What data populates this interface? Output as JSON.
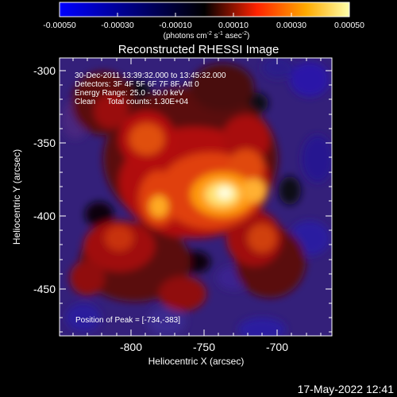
{
  "colorbar": {
    "ticks": [
      "-0.00050",
      "-0.00030",
      "-0.00010",
      "0.00010",
      "0.00030",
      "0.00050"
    ],
    "units_prefix": "(photons cm",
    "units_exp1": "-2",
    "units_mid1": " s",
    "units_exp2": "-1",
    "units_mid2": " asec",
    "units_exp3": "-2",
    "units_suffix": ")",
    "gradient_colors": [
      "#0000ff",
      "#000000",
      "#ff2200",
      "#ffaa00",
      "#ffffaa"
    ]
  },
  "title": "Reconstructed RHESSI Image",
  "info": {
    "line1": "30-Dec-2011 13:39:32.000 to 13:45:32.000",
    "line2": "Detectors: 3F 4F 5F 6F 7F 8F, Att 0",
    "line3": "Energy Range: 25.0 - 50.0 keV",
    "line4_label": "Clean",
    "line4_counts": "Total counts: 1.30E+04"
  },
  "peak_label": "Position of Peak = [-734,-383]",
  "axes": {
    "y_ticks": [
      "-300",
      "-350",
      "-400",
      "-450"
    ],
    "x_ticks": [
      "-800",
      "-750",
      "-700"
    ],
    "ylabel": "Heliocentric Y (arcsec)",
    "xlabel": "Heliocentric X (arcsec)"
  },
  "timestamp": "17-May-2022 12:41"
}
